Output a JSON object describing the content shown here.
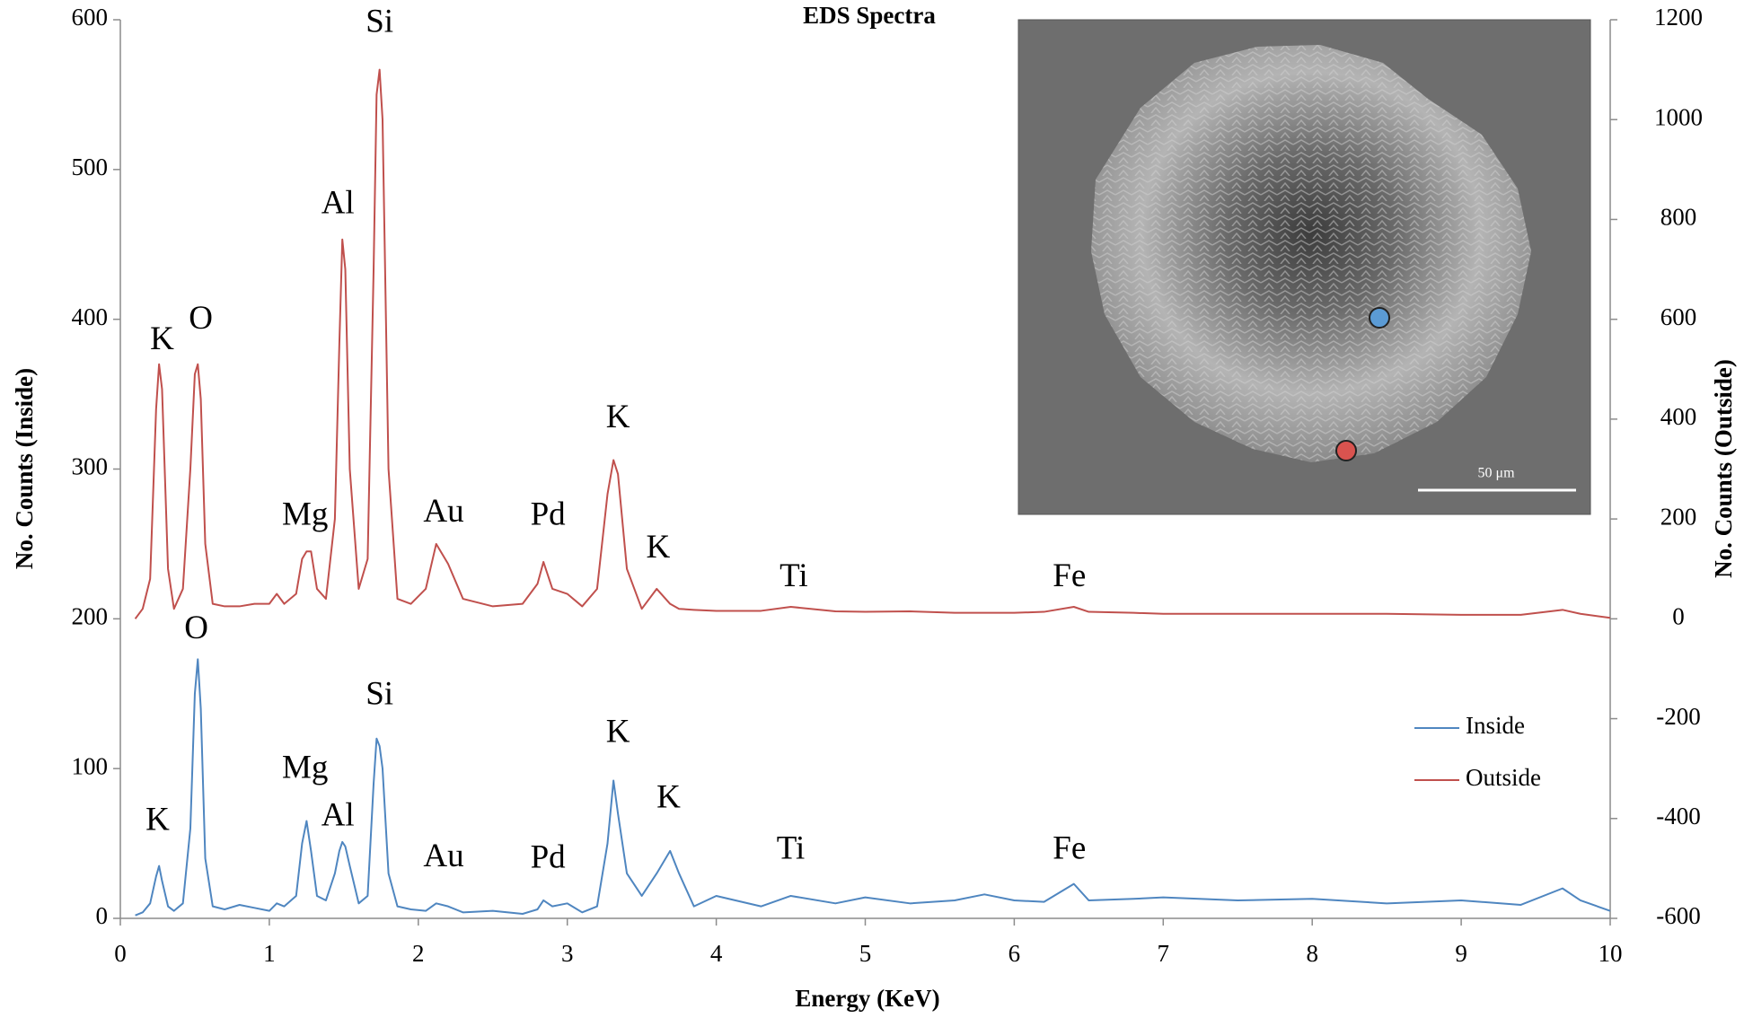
{
  "chart_data": {
    "type": "line",
    "title": "EDS Spectra",
    "xlabel": "Energy (KeV)",
    "ylabel": "No. Counts (Inside)",
    "y2label": "No. Counts (Outside)",
    "xlim": [
      0,
      10
    ],
    "xticks": [
      0,
      1,
      2,
      3,
      4,
      5,
      6,
      7,
      8,
      9,
      10
    ],
    "ylim": [
      0,
      600
    ],
    "yticks": [
      0,
      100,
      200,
      300,
      400,
      500,
      600
    ],
    "y2lim": [
      -600,
      1200
    ],
    "y2ticks": [
      -600,
      -400,
      -200,
      0,
      200,
      400,
      600,
      800,
      1000,
      1200
    ],
    "legend": "right",
    "x": [
      0.1,
      0.15,
      0.2,
      0.24,
      0.26,
      0.28,
      0.32,
      0.36,
      0.42,
      0.47,
      0.5,
      0.52,
      0.54,
      0.57,
      0.62,
      0.7,
      0.8,
      0.9,
      1.0,
      1.05,
      1.1,
      1.18,
      1.22,
      1.25,
      1.28,
      1.32,
      1.38,
      1.44,
      1.47,
      1.49,
      1.51,
      1.54,
      1.6,
      1.66,
      1.7,
      1.72,
      1.74,
      1.76,
      1.8,
      1.86,
      1.95,
      2.05,
      2.12,
      2.2,
      2.3,
      2.5,
      2.7,
      2.8,
      2.84,
      2.9,
      3.0,
      3.1,
      3.2,
      3.27,
      3.31,
      3.34,
      3.4,
      3.5,
      3.6,
      3.69,
      3.75,
      3.85,
      4.0,
      4.3,
      4.5,
      4.8,
      5.0,
      5.3,
      5.6,
      5.8,
      6.0,
      6.2,
      6.4,
      6.5,
      6.8,
      7.0,
      7.5,
      8.0,
      8.5,
      9.0,
      9.4,
      9.68,
      9.8,
      10.0
    ],
    "series": [
      {
        "name": "Inside",
        "color": "#4f86c0",
        "values": [
          2,
          4,
          10,
          28,
          35,
          25,
          8,
          5,
          10,
          60,
          150,
          173,
          140,
          40,
          8,
          6,
          9,
          7,
          5,
          10,
          8,
          15,
          50,
          65,
          45,
          15,
          12,
          30,
          45,
          51,
          48,
          35,
          10,
          15,
          90,
          120,
          115,
          100,
          30,
          8,
          6,
          5,
          10,
          8,
          4,
          5,
          3,
          6,
          12,
          8,
          10,
          4,
          8,
          50,
          92,
          70,
          30,
          15,
          30,
          45,
          30,
          8,
          15,
          8,
          15,
          10,
          14,
          10,
          12,
          16,
          12,
          11,
          23,
          12,
          13,
          14,
          12,
          13,
          10,
          12,
          9,
          20,
          12,
          5
        ]
      },
      {
        "name": "Outside",
        "color": "#c0504d",
        "axis": "y2",
        "values": [
          0,
          20,
          80,
          420,
          510,
          460,
          100,
          20,
          60,
          300,
          490,
          510,
          440,
          150,
          30,
          25,
          25,
          30,
          30,
          50,
          30,
          50,
          120,
          135,
          135,
          60,
          40,
          200,
          550,
          760,
          700,
          300,
          60,
          120,
          700,
          1050,
          1100,
          1000,
          300,
          40,
          30,
          60,
          150,
          110,
          40,
          25,
          30,
          70,
          114,
          60,
          50,
          25,
          60,
          250,
          318,
          290,
          100,
          20,
          60,
          30,
          20,
          18,
          16,
          16,
          24,
          15,
          14,
          15,
          12,
          12,
          12,
          14,
          24,
          14,
          12,
          10,
          10,
          10,
          10,
          8,
          8,
          18,
          10,
          2
        ]
      }
    ],
    "annotations": [
      {
        "text": "K",
        "x": 0.28,
        "y": 385
      },
      {
        "text": "O",
        "x": 0.54,
        "y": 399
      },
      {
        "text": "Mg",
        "x": 1.24,
        "y": 268
      },
      {
        "text": "Al",
        "x": 1.46,
        "y": 476
      },
      {
        "text": "Si",
        "x": 1.74,
        "y": 597
      },
      {
        "text": "Au",
        "x": 2.17,
        "y": 270
      },
      {
        "text": "Pd",
        "x": 2.87,
        "y": 268
      },
      {
        "text": "K",
        "x": 3.34,
        "y": 333
      },
      {
        "text": "K",
        "x": 3.61,
        "y": 246
      },
      {
        "text": "Ti",
        "x": 4.52,
        "y": 227
      },
      {
        "text": "Fe",
        "x": 6.37,
        "y": 227
      },
      {
        "text": "K",
        "x": 0.25,
        "y": 64
      },
      {
        "text": "O",
        "x": 0.51,
        "y": 192
      },
      {
        "text": "Mg",
        "x": 1.24,
        "y": 99
      },
      {
        "text": "Al",
        "x": 1.46,
        "y": 67
      },
      {
        "text": "Si",
        "x": 1.74,
        "y": 148
      },
      {
        "text": "Au",
        "x": 2.17,
        "y": 40
      },
      {
        "text": "Pd",
        "x": 2.87,
        "y": 39
      },
      {
        "text": "K",
        "x": 3.34,
        "y": 123
      },
      {
        "text": "K",
        "x": 3.68,
        "y": 79
      },
      {
        "text": "Ti",
        "x": 4.5,
        "y": 45
      },
      {
        "text": "Fe",
        "x": 6.37,
        "y": 45
      }
    ],
    "inset": {
      "scale_bar": "50 μm"
    }
  }
}
